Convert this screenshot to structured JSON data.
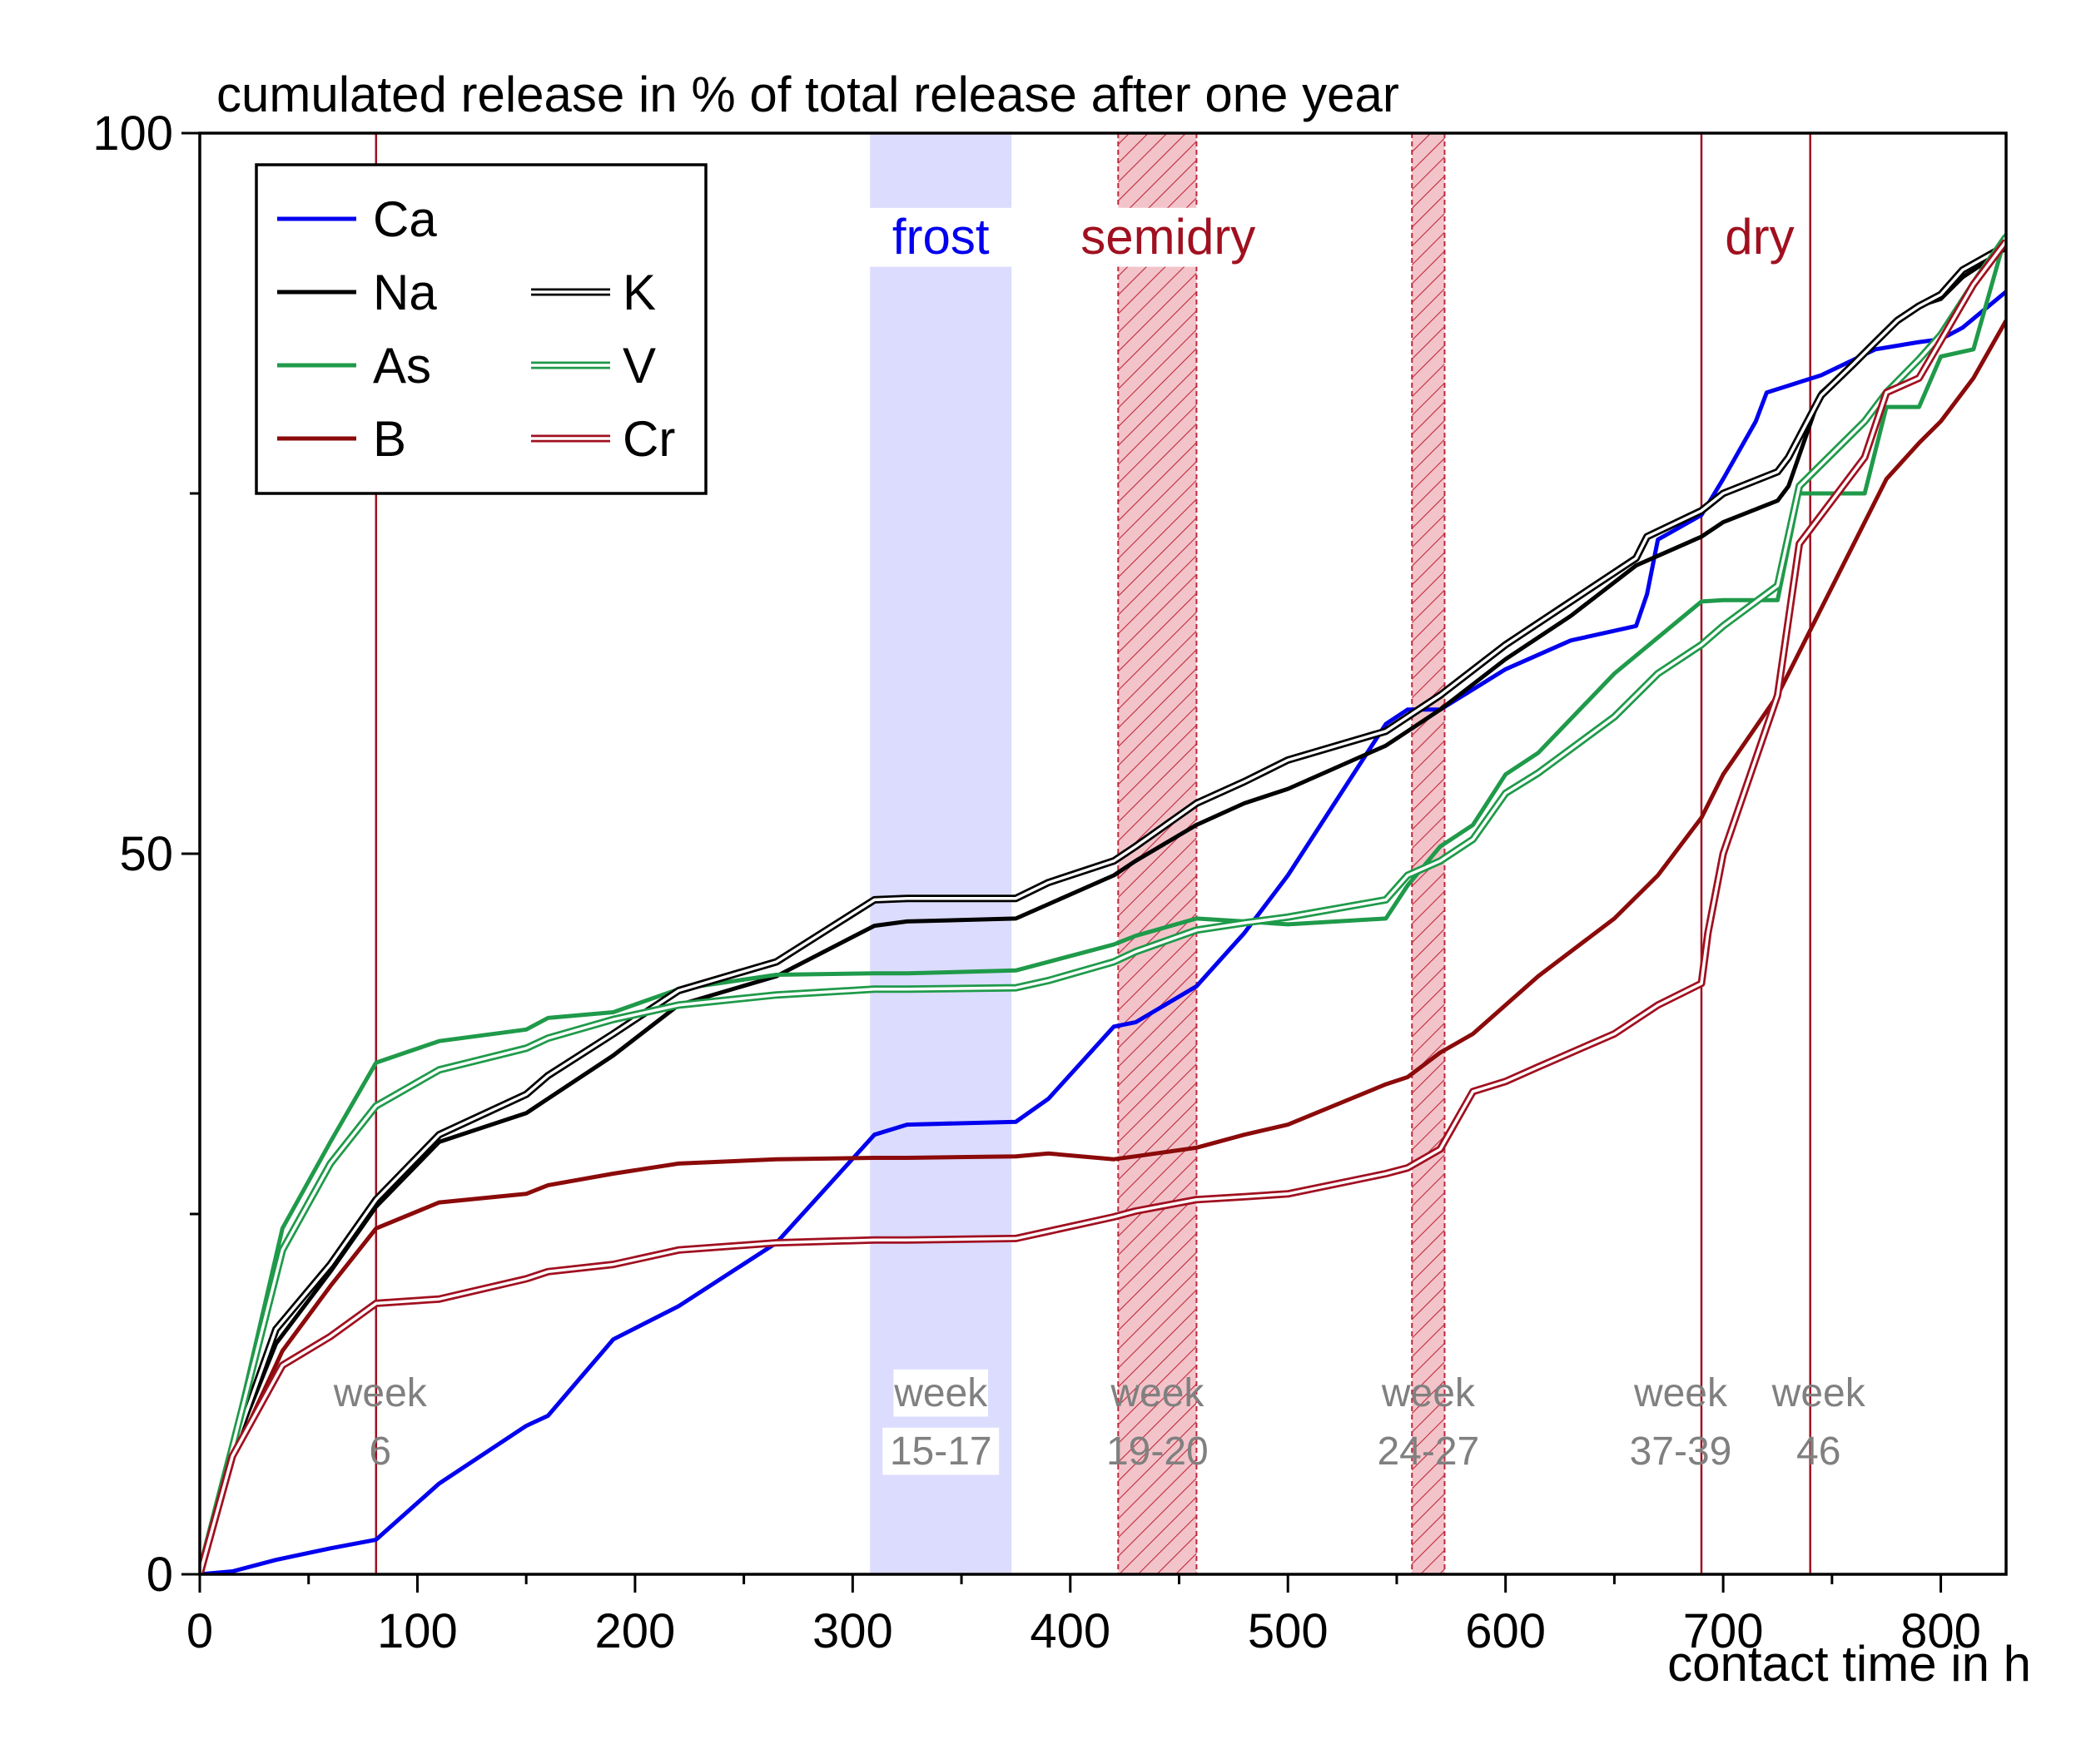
{
  "chart_data": {
    "type": "line",
    "title": "cumulated release in % of total release after one year",
    "xlabel": "contact time in h",
    "ylabel": "",
    "xlim": [
      0,
      830
    ],
    "ylim": [
      0,
      100
    ],
    "x_ticks": [
      0,
      100,
      200,
      300,
      400,
      500,
      600,
      700,
      800
    ],
    "y_ticks": [
      0,
      50,
      100
    ],
    "grid": false,
    "legend_position": "top-left",
    "colors": {
      "Ca": "#0000ee",
      "Na": "#000000",
      "As": "#1f9a4a",
      "B": "#8b0a0a",
      "K": "#000000",
      "V": "#1f9a4a",
      "Cr": "#a01020",
      "frost": "#dcdcff",
      "hatch": "#c0283c",
      "period_label": "#a01020",
      "week_label": "#808080"
    },
    "periods": [
      {
        "label": "frost",
        "start": 308,
        "end": 373,
        "style": "frost",
        "week_label": "week",
        "week_range": "15-17"
      },
      {
        "label": "semidry",
        "start": 422,
        "end": 458,
        "style": "hatched",
        "week_label": "week",
        "week_range": "19-20"
      },
      {
        "label": "",
        "start": 557,
        "end": 572,
        "style": "hatched",
        "week_label": "week",
        "week_range": "24-27"
      }
    ],
    "markers": [
      {
        "x": 81,
        "label": "",
        "week_label": "week",
        "week_range": "6"
      },
      {
        "x": 690,
        "label": "dry",
        "week_label": "week",
        "week_range": "37-39"
      },
      {
        "x": 740,
        "label": "",
        "week_label": "week",
        "week_range": "46"
      }
    ],
    "series": [
      {
        "name": "Ca",
        "style": "solid",
        "x": [
          0,
          15,
          35,
          60,
          81,
          110,
          150,
          160,
          190,
          220,
          265,
          310,
          325,
          375,
          390,
          420,
          430,
          458,
          480,
          500,
          545,
          555,
          570,
          600,
          630,
          660,
          665,
          670,
          690,
          700,
          715,
          720,
          745,
          770,
          790,
          800,
          810,
          830
        ],
        "y": [
          0,
          0.2,
          1,
          1.8,
          2.4,
          6.3,
          10.3,
          11,
          16.3,
          18.6,
          23,
          30.5,
          31.2,
          31.4,
          33,
          38,
          38.3,
          40.8,
          44.5,
          48.5,
          59,
          60,
          60,
          62.8,
          64.8,
          65.8,
          68,
          71.8,
          73.5,
          76,
          80,
          82,
          83.2,
          85,
          85.5,
          85.7,
          86.5,
          89
        ]
      },
      {
        "name": "Na",
        "style": "solid",
        "x": [
          0,
          15,
          35,
          60,
          81,
          110,
          150,
          160,
          190,
          220,
          265,
          310,
          325,
          375,
          390,
          420,
          430,
          458,
          480,
          500,
          545,
          555,
          570,
          600,
          630,
          660,
          690,
          700,
          725,
          730,
          745,
          760,
          770,
          780,
          790,
          800,
          810,
          830
        ],
        "y": [
          0,
          8.5,
          16,
          21,
          25.5,
          30,
          32,
          33,
          36,
          39.5,
          41.5,
          45,
          45.3,
          45.5,
          46.5,
          48.5,
          49.5,
          52,
          53.5,
          54.5,
          57.5,
          58.5,
          60,
          63.5,
          66.5,
          70,
          72,
          73,
          74.5,
          75.5,
          82,
          84,
          85.5,
          87,
          88,
          88.5,
          90,
          92
        ]
      },
      {
        "name": "As",
        "style": "solid",
        "x": [
          0,
          15,
          38,
          60,
          81,
          110,
          150,
          160,
          190,
          220,
          265,
          310,
          325,
          375,
          390,
          420,
          430,
          458,
          480,
          500,
          545,
          555,
          570,
          585,
          600,
          615,
          650,
          670,
          690,
          700,
          725,
          735,
          765,
          775,
          790,
          800,
          815,
          830
        ],
        "y": [
          0,
          9,
          24,
          30,
          35.5,
          37,
          37.8,
          38.6,
          39,
          40.6,
          41.6,
          41.7,
          41.7,
          41.9,
          42.5,
          43.7,
          44.3,
          45.5,
          45.3,
          45.1,
          45.5,
          47.8,
          50.5,
          52,
          55.5,
          57,
          62.5,
          65,
          67.5,
          67.6,
          67.6,
          75,
          75,
          81,
          81,
          84.5,
          85,
          93
        ]
      },
      {
        "name": "B",
        "style": "solid",
        "x": [
          0,
          15,
          38,
          60,
          81,
          110,
          150,
          160,
          190,
          220,
          265,
          310,
          325,
          375,
          390,
          420,
          430,
          458,
          480,
          500,
          545,
          555,
          570,
          585,
          600,
          615,
          650,
          670,
          690,
          700,
          725,
          735,
          765,
          775,
          790,
          800,
          815,
          830
        ],
        "y": [
          0,
          8,
          15.5,
          20,
          24,
          25.8,
          26.4,
          27,
          27.8,
          28.5,
          28.8,
          28.9,
          28.9,
          29,
          29.2,
          28.8,
          29,
          29.6,
          30.5,
          31.2,
          34,
          34.5,
          36.2,
          37.5,
          39.5,
          41.5,
          45.5,
          48.5,
          52.5,
          55.5,
          61,
          64,
          73,
          76,
          78.5,
          80,
          83,
          87
        ]
      },
      {
        "name": "K",
        "style": "double",
        "x": [
          0,
          15,
          35,
          60,
          81,
          110,
          150,
          160,
          190,
          220,
          265,
          310,
          325,
          375,
          390,
          420,
          430,
          458,
          480,
          500,
          545,
          555,
          570,
          600,
          630,
          660,
          665,
          690,
          700,
          725,
          730,
          745,
          760,
          770,
          780,
          790,
          800,
          810,
          830
        ],
        "y": [
          0,
          8.5,
          17,
          21.5,
          26,
          30.5,
          33.3,
          34.6,
          37.5,
          40.5,
          42.5,
          46.8,
          46.9,
          46.9,
          48,
          49.5,
          50.5,
          53.5,
          55,
          56.5,
          58.5,
          59.5,
          61,
          64.5,
          67.5,
          70.5,
          72,
          73.8,
          75,
          76.5,
          77.5,
          81.8,
          84,
          85.5,
          87,
          88,
          88.8,
          90.5,
          92.2
        ]
      },
      {
        "name": "V",
        "style": "double",
        "x": [
          0,
          15,
          38,
          60,
          81,
          110,
          150,
          160,
          190,
          220,
          265,
          310,
          325,
          375,
          390,
          420,
          430,
          458,
          480,
          500,
          545,
          555,
          570,
          585,
          600,
          615,
          650,
          670,
          690,
          700,
          725,
          735,
          765,
          775,
          790,
          800,
          815,
          830
        ],
        "y": [
          0,
          8.8,
          22.5,
          28.5,
          32.5,
          35,
          36.5,
          37.2,
          38.5,
          39.5,
          40.2,
          40.6,
          40.6,
          40.7,
          41.2,
          42.5,
          43.2,
          44.7,
          45.2,
          45.6,
          46.8,
          48.5,
          49.5,
          51,
          54.2,
          55.6,
          59.5,
          62.5,
          64.5,
          65.8,
          68.6,
          75.5,
          80,
          82,
          84.3,
          86,
          89.5,
          92.8
        ]
      },
      {
        "name": "Cr",
        "style": "double",
        "x": [
          0,
          15,
          38,
          60,
          81,
          110,
          150,
          160,
          190,
          220,
          265,
          310,
          325,
          375,
          390,
          420,
          430,
          458,
          480,
          500,
          545,
          555,
          570,
          585,
          600,
          615,
          650,
          670,
          690,
          693,
          700,
          725,
          735,
          765,
          775,
          790,
          800,
          815,
          830
        ],
        "y": [
          0,
          8.2,
          14.5,
          16.5,
          18.8,
          19.1,
          20.5,
          21,
          21.5,
          22.5,
          23,
          23.2,
          23.2,
          23.3,
          23.8,
          24.8,
          25.2,
          26,
          26.2,
          26.4,
          27.8,
          28.2,
          29.5,
          33.5,
          34.2,
          35.2,
          37.5,
          39.5,
          41,
          44.5,
          50,
          61,
          71.5,
          77.5,
          82,
          83,
          85.6,
          89.5,
          92.5
        ]
      }
    ],
    "legend": {
      "col1": [
        "Ca",
        "Na",
        "As",
        "B"
      ],
      "col2": [
        "K",
        "V",
        "Cr"
      ]
    }
  }
}
